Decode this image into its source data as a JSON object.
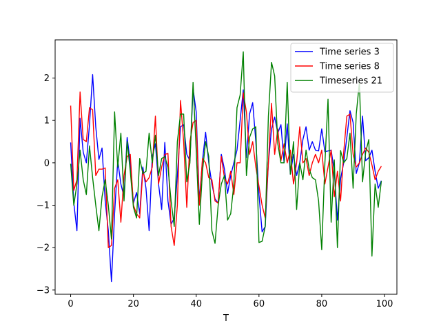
{
  "chart_data": {
    "type": "line",
    "title": "",
    "xlabel": "T",
    "ylabel": "",
    "xlim": [
      -4.95,
      103.95
    ],
    "ylim": [
      -3.1,
      2.9
    ],
    "xticks": [
      0,
      20,
      40,
      60,
      80,
      100
    ],
    "yticks": [
      -3,
      -2,
      -1,
      0,
      1,
      2
    ],
    "grid": false,
    "legend_position": "top-right",
    "series": [
      {
        "name": "Time series 3",
        "color": "#0000ff",
        "values": [
          0.48,
          -0.95,
          -1.6,
          1.05,
          0.25,
          0.0,
          0.9,
          2.08,
          0.85,
          0.08,
          0.35,
          -0.9,
          -1.6,
          -2.8,
          -1.2,
          0.05,
          -0.5,
          -0.8,
          0.6,
          0.0,
          -0.95,
          -0.7,
          -1.2,
          -0.1,
          -0.6,
          -1.6,
          0.15,
          0.45,
          -0.5,
          -1.1,
          0.48,
          -0.9,
          -1.45,
          -1.3,
          -0.3,
          0.85,
          0.9,
          0.2,
          0.05,
          1.75,
          1.2,
          -0.9,
          0.05,
          0.72,
          0.0,
          -0.5,
          -0.85,
          -0.95,
          0.2,
          -0.15,
          -0.72,
          -0.3,
          0.0,
          0.3,
          1.0,
          1.72,
          0.12,
          1.15,
          1.42,
          0.5,
          -0.75,
          -1.63,
          -1.5,
          0.0,
          0.8,
          1.08,
          0.7,
          0.9,
          0.0,
          0.92,
          -0.27,
          0.2,
          -0.3,
          0.0,
          0.55,
          0.85,
          0.3,
          0.5,
          0.3,
          0.28,
          0.8,
          0.26,
          0.28,
          0.3,
          -0.2,
          -1.35,
          -0.38,
          0.0,
          0.6,
          1.23,
          0.95,
          -0.25,
          0.0,
          1.1,
          0.05,
          0.12,
          0.3,
          -0.2,
          -0.6,
          -0.42
        ],
        "xstart": 0
      },
      {
        "name": "Time series 8",
        "color": "#ff0000",
        "values": [
          1.35,
          -0.65,
          -0.4,
          1.67,
          0.55,
          0.5,
          1.3,
          1.25,
          -0.3,
          -0.15,
          -0.15,
          -0.12,
          -2.0,
          -1.95,
          -0.6,
          -0.4,
          -1.4,
          -0.3,
          0.15,
          0.2,
          -1.0,
          -1.2,
          -1.3,
          -0.2,
          -0.45,
          -0.35,
          -0.1,
          1.1,
          -0.5,
          -0.1,
          0.2,
          0.22,
          -1.5,
          -1.95,
          -1.0,
          1.47,
          0.5,
          -1.05,
          0.5,
          0.95,
          1.0,
          -1.0,
          0.1,
          0.0,
          -0.35,
          -0.4,
          -0.9,
          -0.95,
          0.15,
          -0.35,
          -0.5,
          -0.2,
          -0.75,
          0.0,
          0.0,
          1.65,
          1.2,
          0.2,
          0.5,
          -0.1,
          -0.55,
          -1.0,
          -1.3,
          0.0,
          1.4,
          0.2,
          0.8,
          0.05,
          0.45,
          0.0,
          0.3,
          -0.5,
          0.0,
          0.85,
          0.0,
          0.1,
          -0.3,
          0.0,
          0.2,
          0.0,
          0.3,
          -0.5,
          -0.1,
          0.3,
          -0.8,
          -0.2,
          -0.9,
          0.25,
          1.1,
          1.15,
          0.2,
          -0.1,
          0.0,
          0.2,
          0.35,
          0.25,
          -0.05,
          -0.4,
          -0.2,
          -0.08
        ],
        "xstart": 0
      },
      {
        "name": "Timeseries 21",
        "color": "#008000",
        "values": [
          -0.02,
          -1.0,
          -0.5,
          0.3,
          -0.4,
          -0.75,
          0.4,
          -0.35,
          -1.0,
          -1.6,
          -0.8,
          -0.4,
          -1.0,
          -1.8,
          1.2,
          -0.1,
          0.7,
          -0.9,
          0.5,
          -0.2,
          -1.05,
          -1.3,
          0.1,
          -0.25,
          -0.2,
          0.7,
          0.0,
          0.65,
          -0.3,
          0.1,
          0.15,
          -0.1,
          -0.9,
          -1.5,
          0.5,
          1.15,
          1.15,
          -0.45,
          0.0,
          1.9,
          0.3,
          -1.45,
          -0.2,
          0.5,
          0.15,
          -1.6,
          -1.9,
          -1.0,
          -0.5,
          -0.3,
          -1.35,
          -1.2,
          -0.5,
          1.3,
          1.6,
          2.62,
          -0.3,
          0.6,
          0.8,
          0.85,
          -1.88,
          -1.85,
          -1.5,
          1.1,
          2.37,
          2.05,
          0.45,
          0.0,
          0.0,
          1.9,
          -0.27,
          0.5,
          -1.1,
          0.0,
          -0.4,
          0.3,
          -0.15,
          -0.35,
          -0.4,
          -0.9,
          -2.05,
          -0.02,
          1.5,
          -1.4,
          0.07,
          -2.0,
          0.29,
          0.0,
          0.1,
          0.7,
          -0.6,
          1.15,
          1.9,
          -0.45,
          0.25,
          0.55,
          -2.2,
          -0.5,
          -1.05,
          -0.43
        ],
        "xstart": 0
      }
    ]
  }
}
